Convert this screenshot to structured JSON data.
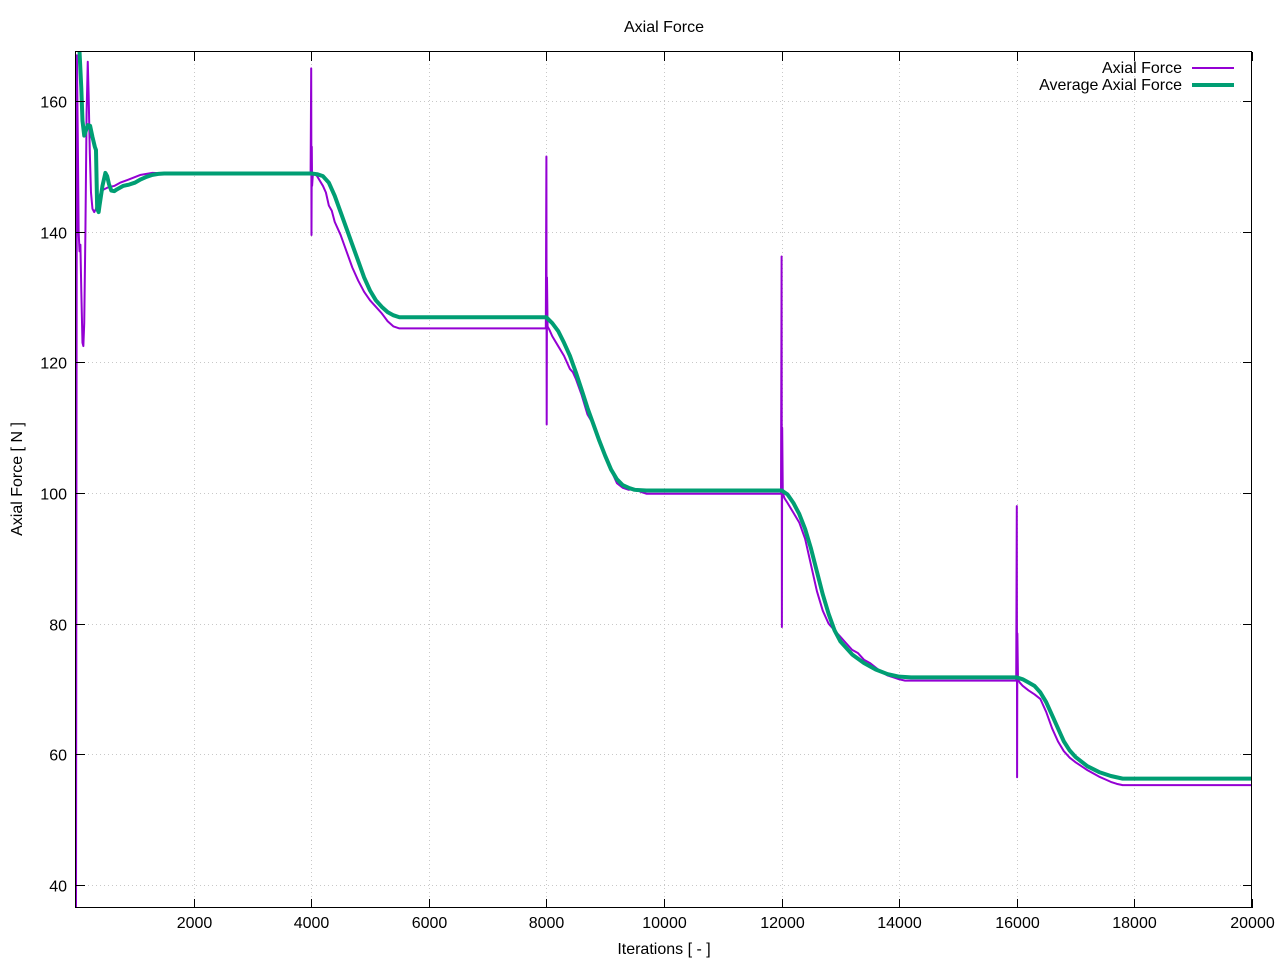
{
  "chart_data": {
    "type": "line",
    "title": "Axial Force",
    "xlabel": "Iterations [ - ]",
    "ylabel": "Axial Force [ N ]",
    "xlim": [
      0,
      20000
    ],
    "ylim": [
      36.5,
      167.5
    ],
    "x_ticks": [
      2000,
      4000,
      6000,
      8000,
      10000,
      12000,
      14000,
      16000,
      18000,
      20000
    ],
    "y_ticks": [
      40,
      60,
      80,
      100,
      120,
      140,
      160
    ],
    "grid": true,
    "legend_position": "top-right",
    "series": [
      {
        "name": "Axial Force",
        "color": "#9400d3",
        "points": [
          [
            0,
            36
          ],
          [
            15,
            167
          ],
          [
            30,
            155
          ],
          [
            45,
            140
          ],
          [
            60,
            137
          ],
          [
            75,
            138
          ],
          [
            90,
            131
          ],
          [
            110,
            123
          ],
          [
            125,
            122.5
          ],
          [
            140,
            126
          ],
          [
            160,
            140
          ],
          [
            180,
            158
          ],
          [
            200,
            166
          ],
          [
            215,
            161
          ],
          [
            235,
            152
          ],
          [
            255,
            146
          ],
          [
            280,
            143.5
          ],
          [
            310,
            143
          ],
          [
            340,
            143.5
          ],
          [
            380,
            145
          ],
          [
            430,
            146.2
          ],
          [
            480,
            146.5
          ],
          [
            550,
            146.8
          ],
          [
            650,
            147
          ],
          [
            750,
            147.5
          ],
          [
            900,
            148
          ],
          [
            1100,
            148.7
          ],
          [
            1300,
            149
          ],
          [
            1600,
            148.9
          ],
          [
            2500,
            148.9
          ],
          [
            3900,
            148.9
          ],
          [
            3990,
            149
          ],
          [
            4000,
            165
          ],
          [
            4005,
            139.5
          ],
          [
            4010,
            153
          ],
          [
            4015,
            147
          ],
          [
            4030,
            149
          ],
          [
            4100,
            148.5
          ],
          [
            4200,
            147
          ],
          [
            4250,
            146
          ],
          [
            4300,
            144
          ],
          [
            4350,
            143.2
          ],
          [
            4400,
            141.5
          ],
          [
            4500,
            139.5
          ],
          [
            4600,
            137
          ],
          [
            4700,
            134.5
          ],
          [
            4800,
            132.5
          ],
          [
            4900,
            130.8
          ],
          [
            5000,
            129.5
          ],
          [
            5100,
            128.5
          ],
          [
            5200,
            127.5
          ],
          [
            5300,
            126.3
          ],
          [
            5400,
            125.5
          ],
          [
            5500,
            125.2
          ],
          [
            6000,
            125.2
          ],
          [
            7000,
            125.2
          ],
          [
            7990,
            125.2
          ],
          [
            8000,
            151.5
          ],
          [
            8005,
            110.5
          ],
          [
            8010,
            133
          ],
          [
            8020,
            125.5
          ],
          [
            8050,
            125
          ],
          [
            8100,
            124
          ],
          [
            8200,
            122.5
          ],
          [
            8300,
            121
          ],
          [
            8400,
            119
          ],
          [
            8450,
            118.5
          ],
          [
            8500,
            117.5
          ],
          [
            8600,
            115
          ],
          [
            8700,
            112
          ],
          [
            8800,
            110.5
          ],
          [
            8900,
            108
          ],
          [
            9000,
            105.5
          ],
          [
            9100,
            103.5
          ],
          [
            9200,
            101.5
          ],
          [
            9300,
            100.8
          ],
          [
            9400,
            100.5
          ],
          [
            9500,
            100.6
          ],
          [
            9600,
            100.2
          ],
          [
            9700,
            99.9
          ],
          [
            10000,
            99.9
          ],
          [
            11000,
            99.9
          ],
          [
            11990,
            99.9
          ],
          [
            12000,
            136.2
          ],
          [
            12005,
            79.5
          ],
          [
            12010,
            110
          ],
          [
            12020,
            100
          ],
          [
            12050,
            99.2
          ],
          [
            12100,
            98.5
          ],
          [
            12200,
            97
          ],
          [
            12300,
            95.5
          ],
          [
            12400,
            93
          ],
          [
            12500,
            89
          ],
          [
            12600,
            85
          ],
          [
            12700,
            82
          ],
          [
            12800,
            80
          ],
          [
            12900,
            79
          ],
          [
            13000,
            78
          ],
          [
            13100,
            77
          ],
          [
            13200,
            76
          ],
          [
            13300,
            75.5
          ],
          [
            13400,
            74.5
          ],
          [
            13500,
            74
          ],
          [
            13600,
            73.3
          ],
          [
            13700,
            72.6
          ],
          [
            13800,
            72.1
          ],
          [
            13900,
            71.8
          ],
          [
            14000,
            71.5
          ],
          [
            14100,
            71.3
          ],
          [
            15000,
            71.3
          ],
          [
            15990,
            71.3
          ],
          [
            16000,
            98
          ],
          [
            16005,
            56.5
          ],
          [
            16010,
            78.5
          ],
          [
            16020,
            71.5
          ],
          [
            16050,
            71
          ],
          [
            16100,
            70.5
          ],
          [
            16200,
            69.8
          ],
          [
            16300,
            69.2
          ],
          [
            16400,
            68.5
          ],
          [
            16500,
            66.5
          ],
          [
            16600,
            64
          ],
          [
            16700,
            62
          ],
          [
            16800,
            60.5
          ],
          [
            16900,
            59.5
          ],
          [
            17000,
            58.8
          ],
          [
            17100,
            58.2
          ],
          [
            17200,
            57.6
          ],
          [
            17300,
            57.1
          ],
          [
            17400,
            56.6
          ],
          [
            17500,
            56.2
          ],
          [
            17600,
            55.8
          ],
          [
            17700,
            55.5
          ],
          [
            17800,
            55.3
          ],
          [
            20000,
            55.3
          ]
        ]
      },
      {
        "name": "Average Axial Force",
        "color": "#009e73",
        "points": [
          [
            60,
            167.5
          ],
          [
            90,
            162
          ],
          [
            110,
            157
          ],
          [
            140,
            154.7
          ],
          [
            170,
            155.5
          ],
          [
            200,
            156.3
          ],
          [
            240,
            156.2
          ],
          [
            280,
            154.5
          ],
          [
            320,
            153
          ],
          [
            340,
            152.5
          ],
          [
            360,
            143.5
          ],
          [
            385,
            143
          ],
          [
            400,
            144
          ],
          [
            450,
            147
          ],
          [
            500,
            149
          ],
          [
            530,
            148.5
          ],
          [
            560,
            147.3
          ],
          [
            600,
            146.3
          ],
          [
            650,
            146.2
          ],
          [
            700,
            146.5
          ],
          [
            800,
            147
          ],
          [
            900,
            147.2
          ],
          [
            1000,
            147.5
          ],
          [
            1100,
            148
          ],
          [
            1200,
            148.4
          ],
          [
            1300,
            148.7
          ],
          [
            1400,
            148.85
          ],
          [
            1500,
            148.9
          ],
          [
            2500,
            148.9
          ],
          [
            4000,
            148.9
          ],
          [
            4100,
            148.8
          ],
          [
            4200,
            148.5
          ],
          [
            4300,
            147.5
          ],
          [
            4400,
            145.5
          ],
          [
            4500,
            143
          ],
          [
            4600,
            140.5
          ],
          [
            4700,
            138
          ],
          [
            4800,
            135.5
          ],
          [
            4900,
            133
          ],
          [
            5000,
            131
          ],
          [
            5100,
            129.5
          ],
          [
            5200,
            128.5
          ],
          [
            5300,
            127.7
          ],
          [
            5400,
            127.2
          ],
          [
            5500,
            126.9
          ],
          [
            6000,
            126.9
          ],
          [
            7000,
            126.9
          ],
          [
            8000,
            126.9
          ],
          [
            8100,
            126
          ],
          [
            8200,
            124.8
          ],
          [
            8300,
            123
          ],
          [
            8400,
            121
          ],
          [
            8500,
            118.5
          ],
          [
            8600,
            115.8
          ],
          [
            8700,
            113
          ],
          [
            8800,
            110.5
          ],
          [
            8900,
            108
          ],
          [
            9000,
            105.7
          ],
          [
            9100,
            103.6
          ],
          [
            9200,
            102.1
          ],
          [
            9300,
            101.2
          ],
          [
            9400,
            100.8
          ],
          [
            9500,
            100.5
          ],
          [
            9700,
            100.4
          ],
          [
            11000,
            100.4
          ],
          [
            12000,
            100.4
          ],
          [
            12100,
            99.8
          ],
          [
            12200,
            98.5
          ],
          [
            12300,
            96.8
          ],
          [
            12400,
            94.5
          ],
          [
            12500,
            91.5
          ],
          [
            12600,
            88
          ],
          [
            12700,
            84.5
          ],
          [
            12800,
            81.5
          ],
          [
            12900,
            79
          ],
          [
            13000,
            77.3
          ],
          [
            13200,
            75.3
          ],
          [
            13400,
            74
          ],
          [
            13600,
            73
          ],
          [
            13800,
            72.3
          ],
          [
            14000,
            71.9
          ],
          [
            14200,
            71.8
          ],
          [
            15000,
            71.8
          ],
          [
            16000,
            71.8
          ],
          [
            16100,
            71.5
          ],
          [
            16200,
            71
          ],
          [
            16300,
            70.5
          ],
          [
            16400,
            69.5
          ],
          [
            16500,
            68
          ],
          [
            16600,
            66
          ],
          [
            16700,
            64
          ],
          [
            16800,
            62
          ],
          [
            16900,
            60.6
          ],
          [
            17000,
            59.6
          ],
          [
            17200,
            58.2
          ],
          [
            17400,
            57.3
          ],
          [
            17600,
            56.7
          ],
          [
            17800,
            56.3
          ],
          [
            20000,
            56.3
          ]
        ]
      }
    ]
  }
}
